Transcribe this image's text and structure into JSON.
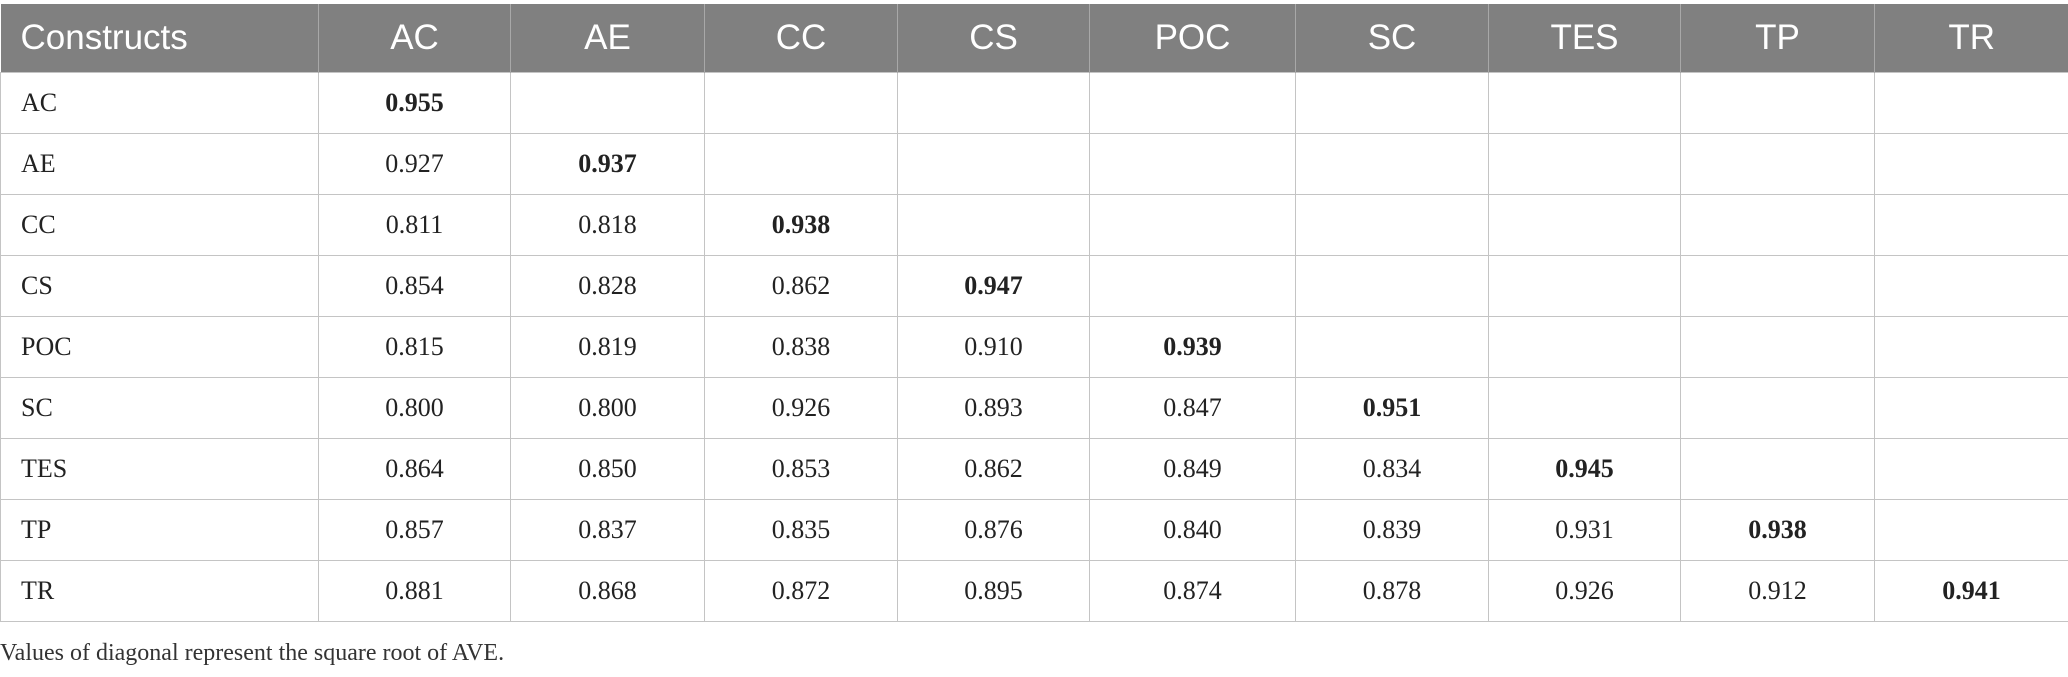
{
  "table": {
    "columns": [
      "Constructs",
      "AC",
      "AE",
      "CC",
      "CS",
      "POC",
      "SC",
      "TES",
      "TP",
      "TR"
    ],
    "rows": [
      [
        "AC",
        "0.955"
      ],
      [
        "AE",
        "0.927",
        "0.937"
      ],
      [
        "CC",
        "0.811",
        "0.818",
        "0.938"
      ],
      [
        "CS",
        "0.854",
        "0.828",
        "0.862",
        "0.947"
      ],
      [
        "POC",
        "0.815",
        "0.819",
        "0.838",
        "0.910",
        "0.939"
      ],
      [
        "SC",
        "0.800",
        "0.800",
        "0.926",
        "0.893",
        "0.847",
        "0.951"
      ],
      [
        "TES",
        "0.864",
        "0.850",
        "0.853",
        "0.862",
        "0.849",
        "0.834",
        "0.945"
      ],
      [
        "TP",
        "0.857",
        "0.837",
        "0.835",
        "0.876",
        "0.840",
        "0.839",
        "0.931",
        "0.938"
      ],
      [
        "TR",
        "0.881",
        "0.868",
        "0.872",
        "0.895",
        "0.874",
        "0.878",
        "0.926",
        "0.912",
        "0.941"
      ]
    ],
    "footnote": "Values of diagonal represent the square root of AVE."
  }
}
